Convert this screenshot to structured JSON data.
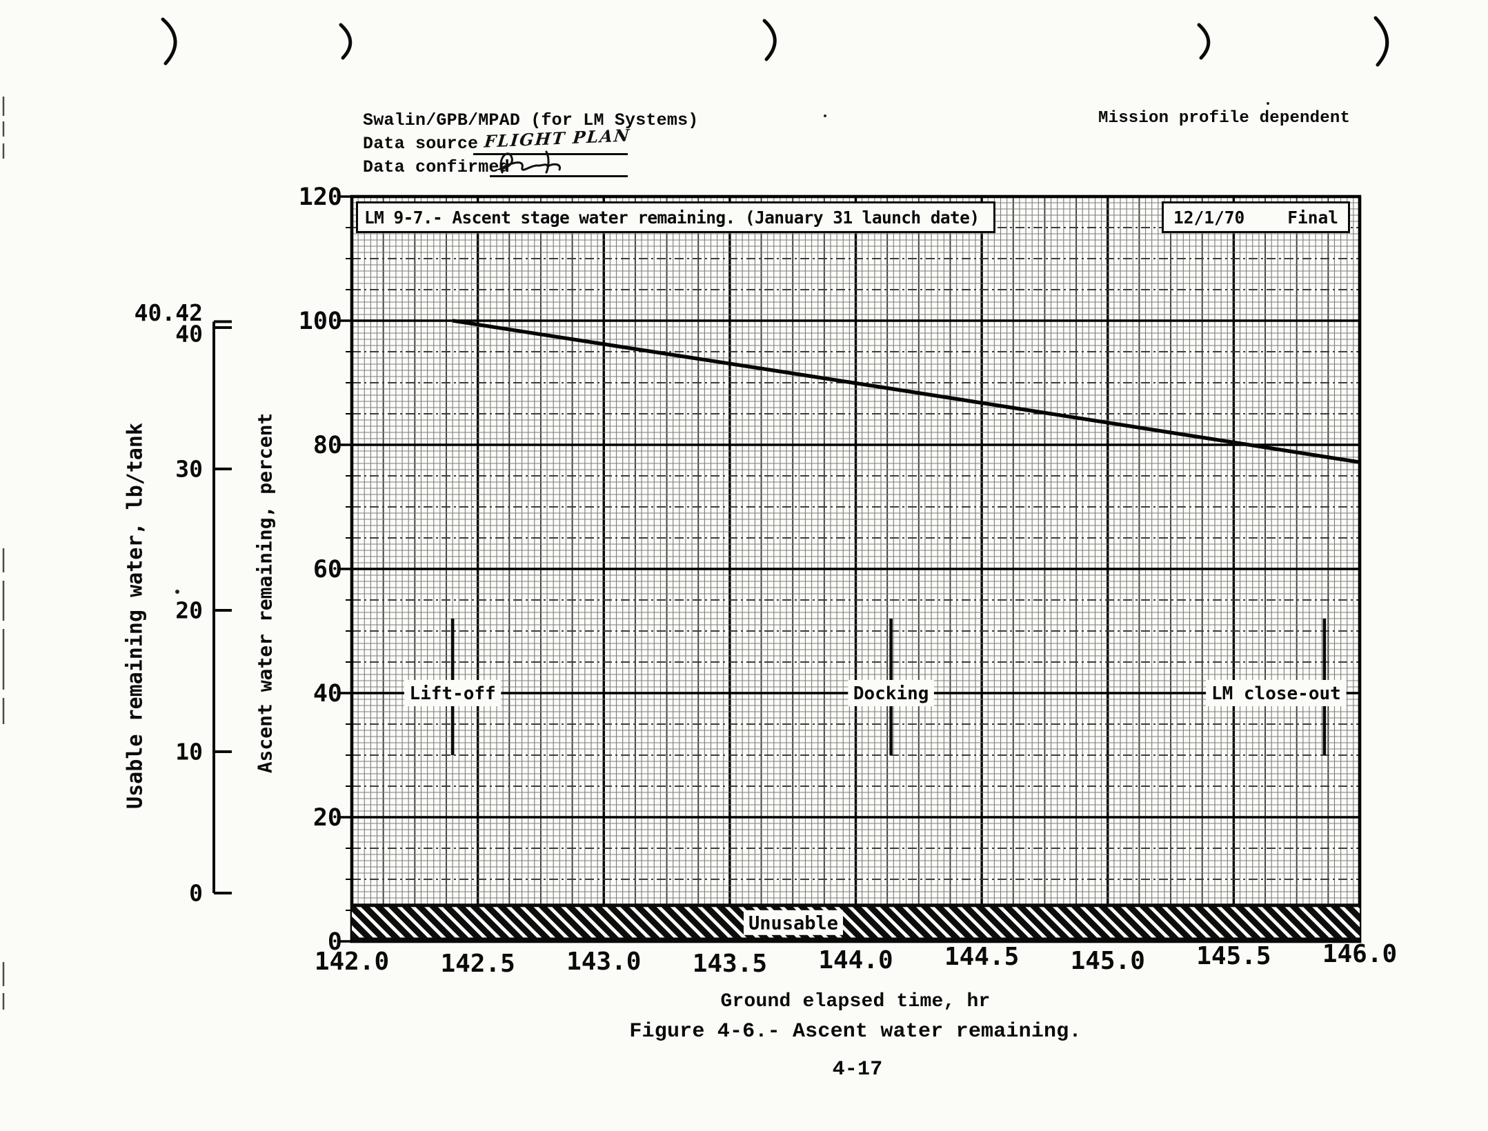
{
  "document": {
    "header": {
      "author_line": "Swalin/GPB/MPAD (for LM Systems)",
      "data_source_label": "Data source",
      "data_source_value": "FLIGHT PLAN",
      "data_confirmed_label": "Data confirmed",
      "mission_note": "Mission profile dependent"
    },
    "figure_caption": "Figure 4-6.- Ascent water remaining.",
    "page_number": "4-17"
  },
  "chart_data": {
    "type": "line",
    "title": "LM 9-7.- Ascent stage water remaining. (January 31 launch date)",
    "stamp": {
      "date": "12/1/70",
      "status": "Final"
    },
    "xlabel": "Ground elapsed time, hr",
    "ylabel": "Ascent water remaining, percent",
    "ylabel_secondary": "Usable remaining water, lb/tank",
    "xlim": [
      142.0,
      146.0
    ],
    "ylim": [
      0,
      120
    ],
    "x_ticks": [
      "142.0",
      "142.5",
      "143.0",
      "143.5",
      "144.0",
      "144.5",
      "145.0",
      "145.5",
      "146.0"
    ],
    "y_ticks": [
      120,
      100,
      80,
      60,
      40,
      20,
      0
    ],
    "y_ticks_secondary": [
      "40.42",
      "40",
      "30",
      "20",
      "10",
      "0"
    ],
    "grid": true,
    "legend": null,
    "series": [
      {
        "name": "Ascent water remaining",
        "x": [
          142.4,
          144.1,
          146.0
        ],
        "y": [
          100,
          89.3,
          77.2
        ]
      }
    ],
    "events": [
      {
        "label": "Lift-off",
        "x": 142.4
      },
      {
        "label": "Docking",
        "x": 144.14
      },
      {
        "label": "LM close-out",
        "x": 145.86
      }
    ],
    "unusable_band": {
      "label": "Unusable",
      "from_percent": 0,
      "to_percent": 5.8
    }
  }
}
